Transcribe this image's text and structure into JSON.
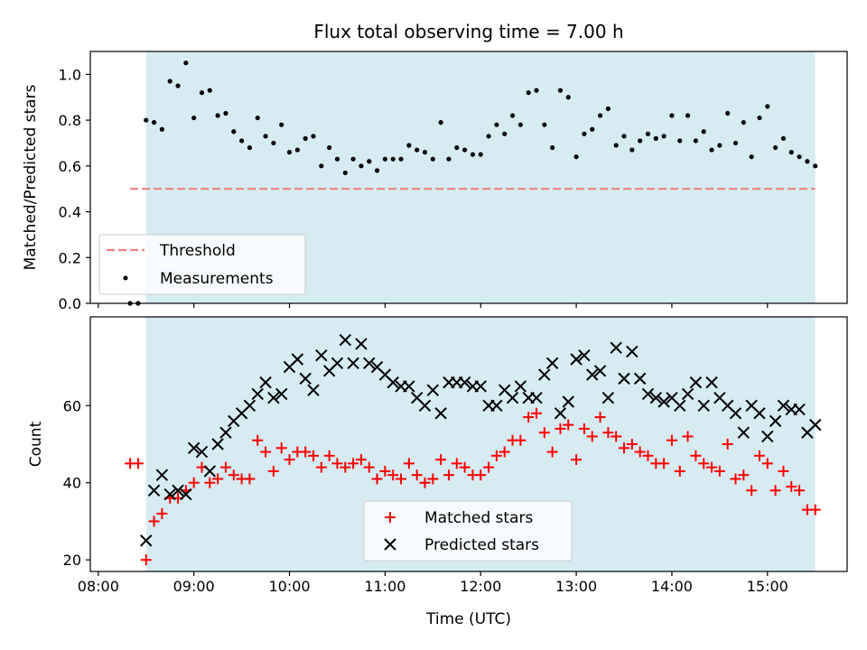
{
  "chart_data": [
    {
      "type": "scatter",
      "title": "Flux total observing time = 7.00 h",
      "xlabel": "",
      "ylabel": "Matched/Predicted stars",
      "xlim": [
        "07:55",
        "15:50"
      ],
      "ylim": [
        0,
        1.1
      ],
      "yticks": [
        "0.0",
        "0.2",
        "0.4",
        "0.6",
        "0.8",
        "1.0"
      ],
      "shaded_span": {
        "from": "08:30",
        "to": "15:30",
        "color": "#add8e6"
      },
      "threshold": {
        "label": "Threshold",
        "value": 0.5,
        "from": "08:20",
        "to": "15:30",
        "color": "#f08080"
      },
      "legend": {
        "placement": "lower-left",
        "entries": [
          "Threshold",
          "Measurements"
        ]
      },
      "series": [
        {
          "name": "Measurements",
          "marker": "dot",
          "color": "#000000",
          "x": [
            "08:20",
            "08:25",
            "08:30",
            "08:35",
            "08:40",
            "08:45",
            "08:50",
            "08:55",
            "09:00",
            "09:05",
            "09:10",
            "09:15",
            "09:20",
            "09:25",
            "09:30",
            "09:35",
            "09:40",
            "09:45",
            "09:50",
            "09:55",
            "10:00",
            "10:05",
            "10:10",
            "10:15",
            "10:20",
            "10:25",
            "10:30",
            "10:35",
            "10:40",
            "10:45",
            "10:50",
            "10:55",
            "11:00",
            "11:05",
            "11:10",
            "11:15",
            "11:20",
            "11:25",
            "11:30",
            "11:35",
            "11:40",
            "11:45",
            "11:50",
            "11:55",
            "12:00",
            "12:05",
            "12:10",
            "12:15",
            "12:20",
            "12:25",
            "12:30",
            "12:35",
            "12:40",
            "12:45",
            "12:50",
            "12:55",
            "13:00",
            "13:05",
            "13:10",
            "13:15",
            "13:20",
            "13:25",
            "13:30",
            "13:35",
            "13:40",
            "13:45",
            "13:50",
            "13:55",
            "14:00",
            "14:05",
            "14:10",
            "14:15",
            "14:20",
            "14:25",
            "14:30",
            "14:35",
            "14:40",
            "14:45",
            "14:50",
            "14:55",
            "15:00",
            "15:05",
            "15:10",
            "15:15",
            "15:20",
            "15:25",
            "15:30"
          ],
          "y": [
            0.0,
            0.0,
            0.8,
            0.79,
            0.76,
            0.97,
            0.95,
            1.05,
            0.81,
            0.92,
            0.93,
            0.82,
            0.83,
            0.75,
            0.71,
            0.68,
            0.81,
            0.73,
            0.7,
            0.78,
            0.66,
            0.67,
            0.72,
            0.73,
            0.6,
            0.68,
            0.63,
            0.57,
            0.63,
            0.6,
            0.62,
            0.58,
            0.63,
            0.63,
            0.63,
            0.69,
            0.67,
            0.66,
            0.63,
            0.79,
            0.63,
            0.68,
            0.67,
            0.65,
            0.65,
            0.73,
            0.78,
            0.74,
            0.82,
            0.78,
            0.92,
            0.93,
            0.78,
            0.68,
            0.93,
            0.9,
            0.64,
            0.74,
            0.76,
            0.82,
            0.85,
            0.69,
            0.73,
            0.67,
            0.71,
            0.74,
            0.72,
            0.73,
            0.82,
            0.71,
            0.82,
            0.71,
            0.75,
            0.67,
            0.69,
            0.83,
            0.7,
            0.79,
            0.64,
            0.81,
            0.86,
            0.68,
            0.72,
            0.66,
            0.64,
            0.62,
            0.6
          ]
        }
      ]
    },
    {
      "type": "scatter",
      "title": "",
      "xlabel": "Time (UTC)",
      "ylabel": "Count",
      "xlim": [
        "07:55",
        "15:50"
      ],
      "ylim": [
        17,
        83
      ],
      "xticks": [
        "08:00",
        "09:00",
        "10:00",
        "11:00",
        "12:00",
        "13:00",
        "14:00",
        "15:00"
      ],
      "yticks": [
        "20",
        "40",
        "60"
      ],
      "shaded_span": {
        "from": "08:30",
        "to": "15:30",
        "color": "#add8e6"
      },
      "legend": {
        "placement": "lower-center",
        "entries": [
          "Matched stars",
          "Predicted stars"
        ]
      },
      "series": [
        {
          "name": "Matched stars",
          "marker": "plus",
          "color": "#ff0000",
          "x": [
            "08:20",
            "08:25",
            "08:30",
            "08:35",
            "08:40",
            "08:45",
            "08:50",
            "08:55",
            "09:00",
            "09:05",
            "09:10",
            "09:15",
            "09:20",
            "09:25",
            "09:30",
            "09:35",
            "09:40",
            "09:45",
            "09:50",
            "09:55",
            "10:00",
            "10:05",
            "10:10",
            "10:15",
            "10:20",
            "10:25",
            "10:30",
            "10:35",
            "10:40",
            "10:45",
            "10:50",
            "10:55",
            "11:00",
            "11:05",
            "11:10",
            "11:15",
            "11:20",
            "11:25",
            "11:30",
            "11:35",
            "11:40",
            "11:45",
            "11:50",
            "11:55",
            "12:00",
            "12:05",
            "12:10",
            "12:15",
            "12:20",
            "12:25",
            "12:30",
            "12:35",
            "12:40",
            "12:45",
            "12:50",
            "12:55",
            "13:00",
            "13:05",
            "13:10",
            "13:15",
            "13:20",
            "13:25",
            "13:30",
            "13:35",
            "13:40",
            "13:45",
            "13:50",
            "13:55",
            "14:00",
            "14:05",
            "14:10",
            "14:15",
            "14:20",
            "14:25",
            "14:30",
            "14:35",
            "14:40",
            "14:45",
            "14:50",
            "14:55",
            "15:00",
            "15:05",
            "15:10",
            "15:15",
            "15:20",
            "15:25",
            "15:30"
          ],
          "y": [
            45,
            45,
            20,
            30,
            32,
            36,
            36,
            38,
            40,
            44,
            40,
            41,
            44,
            42,
            41,
            41,
            51,
            48,
            43,
            49,
            46,
            48,
            48,
            47,
            44,
            47,
            45,
            44,
            45,
            46,
            44,
            41,
            43,
            42,
            41,
            45,
            42,
            40,
            41,
            46,
            42,
            45,
            44,
            42,
            42,
            44,
            47,
            48,
            51,
            51,
            57,
            58,
            53,
            48,
            54,
            55,
            46,
            54,
            52,
            57,
            53,
            52,
            49,
            50,
            48,
            47,
            45,
            45,
            51,
            43,
            52,
            47,
            45,
            44,
            43,
            50,
            41,
            42,
            38,
            47,
            45,
            38,
            43,
            39,
            38,
            33,
            33
          ]
        },
        {
          "name": "Predicted stars",
          "marker": "x",
          "color": "#000000",
          "x": [
            "08:30",
            "08:35",
            "08:40",
            "08:45",
            "08:50",
            "08:55",
            "09:00",
            "09:05",
            "09:10",
            "09:15",
            "09:20",
            "09:25",
            "09:30",
            "09:35",
            "09:40",
            "09:45",
            "09:50",
            "09:55",
            "10:00",
            "10:05",
            "10:10",
            "10:15",
            "10:20",
            "10:25",
            "10:30",
            "10:35",
            "10:40",
            "10:45",
            "10:50",
            "10:55",
            "11:00",
            "11:05",
            "11:10",
            "11:15",
            "11:20",
            "11:25",
            "11:30",
            "11:35",
            "11:40",
            "11:45",
            "11:50",
            "11:55",
            "12:00",
            "12:05",
            "12:10",
            "12:15",
            "12:20",
            "12:25",
            "12:30",
            "12:35",
            "12:40",
            "12:45",
            "12:50",
            "12:55",
            "13:00",
            "13:05",
            "13:10",
            "13:15",
            "13:20",
            "13:25",
            "13:30",
            "13:35",
            "13:40",
            "13:45",
            "13:50",
            "13:55",
            "14:00",
            "14:05",
            "14:10",
            "14:15",
            "14:20",
            "14:25",
            "14:30",
            "14:35",
            "14:40",
            "14:45",
            "14:50",
            "14:55",
            "15:00",
            "15:05",
            "15:10",
            "15:15",
            "15:20",
            "15:25",
            "15:30"
          ],
          "y": [
            25,
            38,
            42,
            37,
            38,
            37,
            49,
            48,
            43,
            50,
            53,
            56,
            58,
            60,
            63,
            66,
            62,
            63,
            70,
            72,
            67,
            64,
            73,
            69,
            71,
            77,
            71,
            76,
            71,
            70,
            68,
            66,
            65,
            65,
            62,
            60,
            64,
            58,
            66,
            66,
            66,
            65,
            65,
            60,
            60,
            64,
            62,
            65,
            62,
            62,
            68,
            71,
            58,
            61,
            72,
            73,
            68,
            69,
            62,
            75,
            67,
            74,
            67,
            63,
            62,
            61,
            62,
            60,
            63,
            66,
            60,
            66,
            62,
            60,
            58,
            53,
            60,
            58,
            52,
            56,
            60,
            59,
            59,
            53,
            55
          ]
        }
      ]
    }
  ]
}
